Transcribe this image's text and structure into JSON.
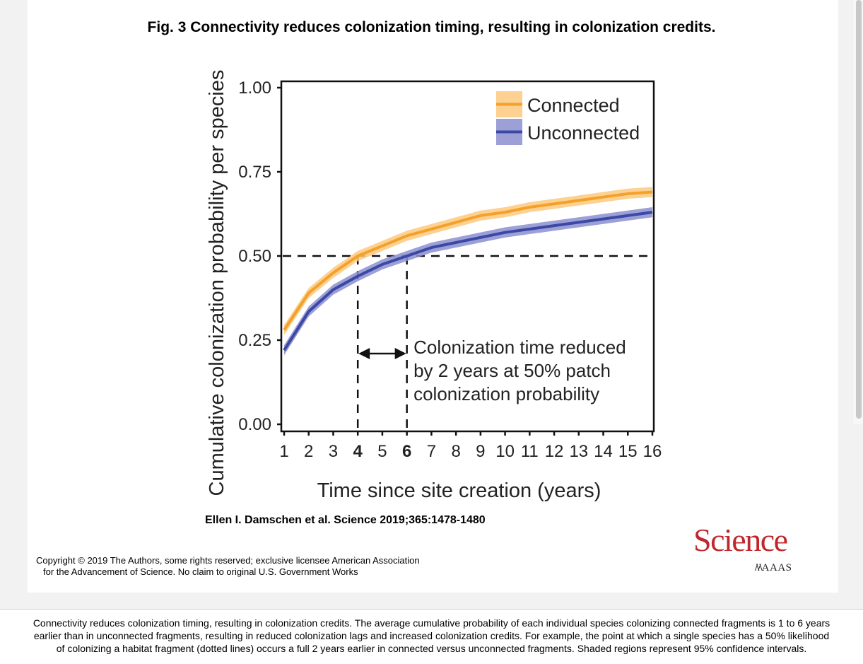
{
  "figure": {
    "title": "Fig. 3 Connectivity reduces colonization timing, resulting in colonization credits.",
    "citation": "Ellen I. Damschen et al. Science 2019;365:1478-1480",
    "copyright_line1": "Copyright © 2019 The Authors, some rights reserved; exclusive licensee American Association",
    "copyright_line2": "for the Advancement of Science. No claim to original U.S. Government Works",
    "logo_text": "Science",
    "publisher_text": "AAAS"
  },
  "caption": {
    "line1": "Connectivity reduces colonization timing, resulting in colonization credits. The average cumulative probability of each individual species colonizing connected fragments is 1 to 6 years",
    "line2": "earlier than in unconnected fragments, resulting in reduced colonization lags and increased colonization credits. For example, the point at which a single species has a 50% likelihood",
    "line3": "of colonizing a habitat fragment (dotted lines) occurs a full 2 years earlier in connected versus unconnected fragments. Shaded regions represent 95% confidence intervals."
  },
  "chart_data": {
    "type": "line",
    "xlabel": "Time since site creation (years)",
    "ylabel": "Cumulative colonization probability per species",
    "xlim": [
      1,
      16
    ],
    "ylim": [
      0,
      1
    ],
    "x_ticks": [
      1,
      2,
      3,
      4,
      5,
      6,
      7,
      8,
      9,
      10,
      11,
      12,
      13,
      14,
      15,
      16
    ],
    "x_tick_labels": [
      "1",
      "2",
      "3",
      "4",
      "5",
      "6",
      "7",
      "8",
      "9",
      "10",
      "11",
      "12",
      "13",
      "14",
      "15",
      "16"
    ],
    "bold_x_ticks": [
      4,
      6
    ],
    "y_ticks": [
      0,
      0.25,
      0.5,
      0.75,
      1.0
    ],
    "y_tick_labels": [
      "0.00",
      "0.25",
      "0.50",
      "0.75",
      "1.00"
    ],
    "legend_position": "top-right",
    "x": [
      1,
      2,
      3,
      4,
      5,
      6,
      7,
      8,
      9,
      10,
      11,
      12,
      13,
      14,
      15,
      16
    ],
    "series": [
      {
        "name": "Connected",
        "color": "#f4a12a",
        "band_color": "#fbc97e",
        "values": [
          0.28,
          0.39,
          0.45,
          0.5,
          0.53,
          0.56,
          0.58,
          0.6,
          0.62,
          0.63,
          0.645,
          0.655,
          0.665,
          0.675,
          0.685,
          0.69
        ],
        "ci_halfwidth": 0.015
      },
      {
        "name": "Unconnected",
        "color": "#3b48a4",
        "band_color": "#8b8fd0",
        "values": [
          0.22,
          0.335,
          0.4,
          0.44,
          0.475,
          0.5,
          0.525,
          0.54,
          0.555,
          0.57,
          0.58,
          0.59,
          0.6,
          0.61,
          0.62,
          0.63
        ],
        "ci_halfwidth": 0.015
      }
    ],
    "reference_lines": [
      {
        "axis": "y",
        "value": 0.5
      },
      {
        "axis": "x",
        "value": 4,
        "to_y": 0.5
      },
      {
        "axis": "x",
        "value": 6,
        "to_y": 0.5
      }
    ],
    "arrow": {
      "x_from": 4,
      "x_to": 6,
      "y": 0.21
    },
    "annotation": {
      "lines": [
        "Colonization time reduced",
        "by 2 years at 50% patch",
        "colonization probability"
      ],
      "x": 6.3,
      "y": 0.225
    }
  }
}
